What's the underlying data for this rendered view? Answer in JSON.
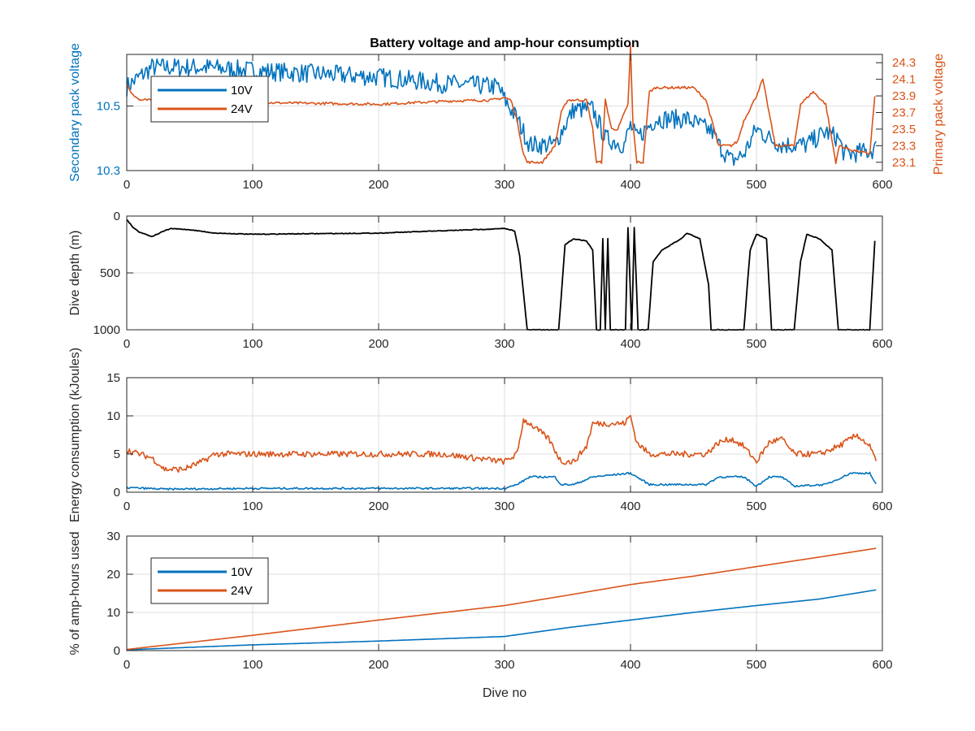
{
  "figure": {
    "title": "Battery voltage and amp-hour consumption",
    "xlabel": "Dive no"
  },
  "colors": {
    "10V": "#0072BD",
    "24V": "#D95319",
    "depth": "#000000",
    "grid": "#dfdfdf",
    "axis": "#262626"
  },
  "chart_data": [
    {
      "type": "line",
      "xlim": [
        0,
        600
      ],
      "xticks": [
        0,
        100,
        200,
        300,
        400,
        500,
        600
      ],
      "ylabel": "Secondary pack voltage",
      "ylim": [
        10.3,
        10.66
      ],
      "yticks": [
        10.3,
        10.5
      ],
      "y2label": "Primary pack voltage",
      "y2lim": [
        23.0,
        24.4
      ],
      "y2ticks": [
        23.1,
        23.3,
        23.5,
        23.7,
        23.9,
        24.1,
        24.3
      ],
      "legend": "top-left",
      "grid": true,
      "series": [
        {
          "name": "10V",
          "axis": "left",
          "noise": 0.03,
          "points": [
            [
              0,
              10.56
            ],
            [
              20,
              10.62
            ],
            [
              60,
              10.62
            ],
            [
              100,
              10.61
            ],
            [
              150,
              10.6
            ],
            [
              200,
              10.59
            ],
            [
              250,
              10.57
            ],
            [
              295,
              10.56
            ],
            [
              300,
              10.52
            ],
            [
              310,
              10.46
            ],
            [
              320,
              10.38
            ],
            [
              340,
              10.38
            ],
            [
              345,
              10.42
            ],
            [
              355,
              10.49
            ],
            [
              370,
              10.49
            ],
            [
              380,
              10.4
            ],
            [
              395,
              10.38
            ],
            [
              400,
              10.44
            ],
            [
              405,
              10.4
            ],
            [
              420,
              10.46
            ],
            [
              445,
              10.46
            ],
            [
              465,
              10.42
            ],
            [
              470,
              10.38
            ],
            [
              480,
              10.33
            ],
            [
              490,
              10.35
            ],
            [
              500,
              10.43
            ],
            [
              510,
              10.4
            ],
            [
              520,
              10.38
            ],
            [
              540,
              10.38
            ],
            [
              555,
              10.42
            ],
            [
              565,
              10.4
            ],
            [
              570,
              10.35
            ],
            [
              590,
              10.36
            ],
            [
              595,
              10.37
            ]
          ]
        },
        {
          "name": "24V",
          "axis": "right",
          "noise": 0.015,
          "points": [
            [
              0,
              24.05
            ],
            [
              3,
              23.95
            ],
            [
              10,
              23.85
            ],
            [
              50,
              23.84
            ],
            [
              100,
              23.82
            ],
            [
              200,
              23.8
            ],
            [
              260,
              23.84
            ],
            [
              290,
              23.85
            ],
            [
              300,
              23.88
            ],
            [
              305,
              23.85
            ],
            [
              310,
              23.6
            ],
            [
              315,
              23.2
            ],
            [
              318,
              23.1
            ],
            [
              330,
              23.1
            ],
            [
              340,
              23.3
            ],
            [
              345,
              23.7
            ],
            [
              350,
              23.85
            ],
            [
              365,
              23.85
            ],
            [
              370,
              23.5
            ],
            [
              373,
              23.1
            ],
            [
              377,
              23.1
            ],
            [
              380,
              23.85
            ],
            [
              385,
              23.5
            ],
            [
              390,
              23.5
            ],
            [
              398,
              23.8
            ],
            [
              400,
              24.5
            ],
            [
              402,
              23.55
            ],
            [
              405,
              23.1
            ],
            [
              410,
              23.1
            ],
            [
              415,
              23.95
            ],
            [
              420,
              24.0
            ],
            [
              450,
              24.0
            ],
            [
              460,
              23.85
            ],
            [
              470,
              23.3
            ],
            [
              480,
              23.3
            ],
            [
              485,
              23.35
            ],
            [
              490,
              23.6
            ],
            [
              500,
              23.9
            ],
            [
              505,
              24.1
            ],
            [
              510,
              23.7
            ],
            [
              515,
              23.3
            ],
            [
              530,
              23.3
            ],
            [
              535,
              23.8
            ],
            [
              545,
              23.95
            ],
            [
              555,
              23.8
            ],
            [
              563,
              23.1
            ],
            [
              566,
              23.3
            ],
            [
              575,
              23.25
            ],
            [
              590,
              23.2
            ],
            [
              594,
              23.9
            ]
          ]
        }
      ]
    },
    {
      "type": "line",
      "xlim": [
        0,
        600
      ],
      "xticks": [
        0,
        100,
        200,
        300,
        400,
        500,
        600
      ],
      "ylabel": "Dive depth (m)",
      "ylim": [
        0,
        1000
      ],
      "yreversed": true,
      "yticks": [
        0,
        500,
        1000
      ],
      "grid": true,
      "series": [
        {
          "name": "depth",
          "noise": 3,
          "points": [
            [
              0,
              30
            ],
            [
              5,
              100
            ],
            [
              10,
              140
            ],
            [
              20,
              180
            ],
            [
              30,
              130
            ],
            [
              35,
              110
            ],
            [
              50,
              120
            ],
            [
              70,
              150
            ],
            [
              100,
              160
            ],
            [
              200,
              150
            ],
            [
              250,
              130
            ],
            [
              300,
              110
            ],
            [
              308,
              130
            ],
            [
              312,
              350
            ],
            [
              318,
              1000
            ],
            [
              343,
              1000
            ],
            [
              348,
              250
            ],
            [
              355,
              200
            ],
            [
              365,
              220
            ],
            [
              370,
              300
            ],
            [
              373,
              1000
            ],
            [
              376,
              1000
            ],
            [
              378,
              200
            ],
            [
              380,
              1000
            ],
            [
              382,
              200
            ],
            [
              384,
              1000
            ],
            [
              396,
              1000
            ],
            [
              398,
              100
            ],
            [
              401,
              1000
            ],
            [
              403,
              100
            ],
            [
              406,
              1000
            ],
            [
              414,
              1000
            ],
            [
              418,
              400
            ],
            [
              425,
              300
            ],
            [
              440,
              200
            ],
            [
              445,
              150
            ],
            [
              455,
              200
            ],
            [
              462,
              600
            ],
            [
              464,
              1000
            ],
            [
              490,
              1000
            ],
            [
              495,
              300
            ],
            [
              500,
              160
            ],
            [
              508,
              200
            ],
            [
              512,
              1000
            ],
            [
              530,
              1000
            ],
            [
              535,
              400
            ],
            [
              540,
              160
            ],
            [
              550,
              200
            ],
            [
              560,
              300
            ],
            [
              565,
              1000
            ],
            [
              590,
              1000
            ],
            [
              594,
              220
            ]
          ]
        }
      ]
    },
    {
      "type": "line",
      "xlim": [
        0,
        600
      ],
      "xticks": [
        0,
        100,
        200,
        300,
        400,
        500,
        600
      ],
      "ylabel": "Energy consumption (kJoules)",
      "ylim": [
        0,
        15
      ],
      "yticks": [
        0,
        5,
        10,
        15
      ],
      "grid": true,
      "series": [
        {
          "name": "24V",
          "noise": 0.4,
          "points": [
            [
              0,
              5.5
            ],
            [
              10,
              5.0
            ],
            [
              20,
              4.5
            ],
            [
              30,
              3.0
            ],
            [
              45,
              3.0
            ],
            [
              60,
              4.0
            ],
            [
              70,
              5.0
            ],
            [
              100,
              5.0
            ],
            [
              150,
              5.0
            ],
            [
              200,
              5.0
            ],
            [
              250,
              5.0
            ],
            [
              300,
              4.0
            ],
            [
              310,
              5.0
            ],
            [
              315,
              9.5
            ],
            [
              320,
              9.0
            ],
            [
              335,
              7.0
            ],
            [
              345,
              4.0
            ],
            [
              355,
              4.0
            ],
            [
              365,
              6.0
            ],
            [
              370,
              9.0
            ],
            [
              385,
              9.0
            ],
            [
              395,
              9.0
            ],
            [
              400,
              10.0
            ],
            [
              405,
              6.5
            ],
            [
              415,
              5.0
            ],
            [
              440,
              5.0
            ],
            [
              460,
              5.0
            ],
            [
              470,
              6.5
            ],
            [
              480,
              7.0
            ],
            [
              490,
              6.0
            ],
            [
              500,
              4.0
            ],
            [
              510,
              6.5
            ],
            [
              520,
              7.0
            ],
            [
              530,
              5.0
            ],
            [
              550,
              5.0
            ],
            [
              565,
              6.0
            ],
            [
              580,
              7.5
            ],
            [
              590,
              6.0
            ],
            [
              595,
              4.0
            ]
          ]
        },
        {
          "name": "10V",
          "noise": 0.12,
          "points": [
            [
              0,
              0.6
            ],
            [
              30,
              0.4
            ],
            [
              100,
              0.5
            ],
            [
              200,
              0.5
            ],
            [
              300,
              0.5
            ],
            [
              310,
              1.0
            ],
            [
              320,
              2.0
            ],
            [
              340,
              2.0
            ],
            [
              345,
              1.0
            ],
            [
              355,
              1.0
            ],
            [
              370,
              2.0
            ],
            [
              400,
              2.5
            ],
            [
              415,
              1.0
            ],
            [
              460,
              1.0
            ],
            [
              470,
              2.0
            ],
            [
              490,
              2.0
            ],
            [
              500,
              0.8
            ],
            [
              510,
              2.0
            ],
            [
              520,
              2.0
            ],
            [
              530,
              0.8
            ],
            [
              555,
              1.0
            ],
            [
              575,
              2.5
            ],
            [
              590,
              2.5
            ],
            [
              595,
              1.0
            ]
          ]
        }
      ]
    },
    {
      "type": "line",
      "xlim": [
        0,
        600
      ],
      "xticks": [
        0,
        100,
        200,
        300,
        400,
        500,
        600
      ],
      "ylabel": "% of amp-hours used",
      "ylim": [
        0,
        30
      ],
      "yticks": [
        0,
        10,
        20,
        30
      ],
      "legend": "top-left",
      "grid": true,
      "series": [
        {
          "name": "10V",
          "noise": 0,
          "points": [
            [
              0,
              0.2
            ],
            [
              100,
              1.5
            ],
            [
              200,
              2.5
            ],
            [
              300,
              3.7
            ],
            [
              350,
              6.0
            ],
            [
              400,
              8.0
            ],
            [
              450,
              10.0
            ],
            [
              500,
              11.8
            ],
            [
              550,
              13.5
            ],
            [
              595,
              15.9
            ]
          ]
        },
        {
          "name": "24V",
          "noise": 0,
          "points": [
            [
              0,
              0.3
            ],
            [
              100,
              4.0
            ],
            [
              200,
              8.0
            ],
            [
              300,
              11.8
            ],
            [
              350,
              14.5
            ],
            [
              400,
              17.3
            ],
            [
              450,
              19.5
            ],
            [
              500,
              22.0
            ],
            [
              550,
              24.5
            ],
            [
              595,
              26.8
            ]
          ]
        }
      ]
    }
  ]
}
